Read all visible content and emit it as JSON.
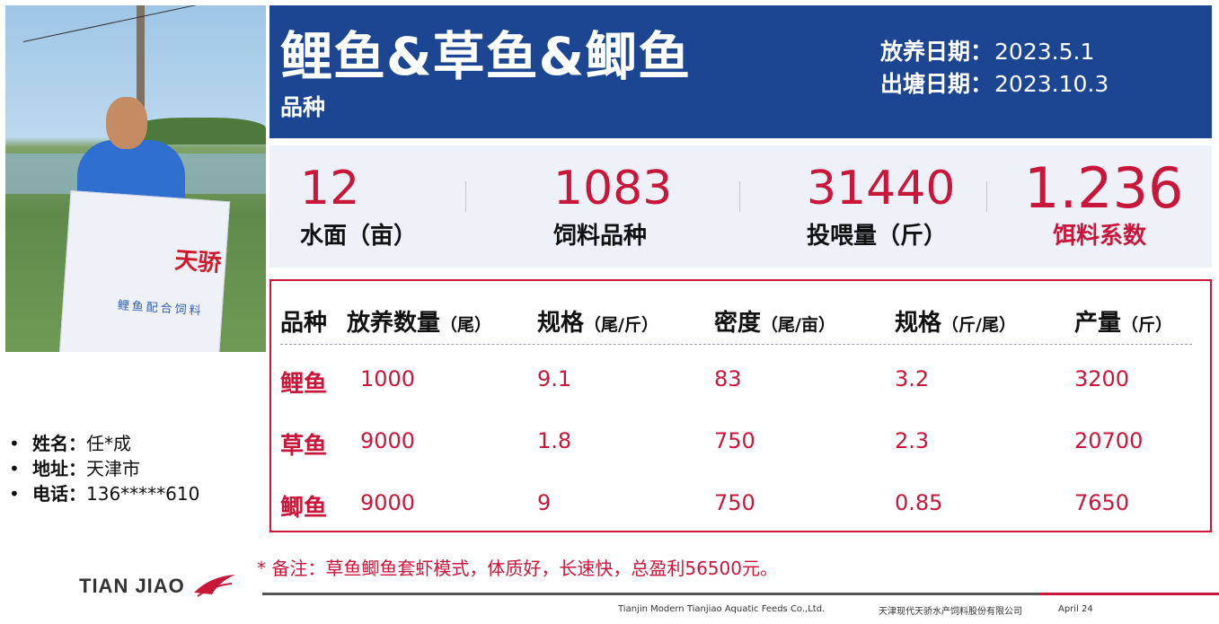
{
  "header": {
    "title": "鲤鱼&草鱼&鲫鱼",
    "subtitle": "品种",
    "stock_date_label": "放养日期：",
    "stock_date": "2023.5.1",
    "harvest_date_label": "出塘日期：",
    "harvest_date": "2023.10.3"
  },
  "photo": {
    "bag_brand": "天骄",
    "bag_sub": "鲤鱼配合饲料"
  },
  "stats": [
    {
      "value": "12",
      "label": "水面（亩）"
    },
    {
      "value": "1083",
      "label": "饲料品种"
    },
    {
      "value": "31440",
      "label": "投喂量（斤）"
    },
    {
      "value": "1.236",
      "label": "饵料系数"
    }
  ],
  "table": {
    "headers": [
      {
        "name": "品种",
        "unit": ""
      },
      {
        "name": "放养数量",
        "unit": "（尾）"
      },
      {
        "name": "规格",
        "unit": "（尾/斤）"
      },
      {
        "name": "密度",
        "unit": "（尾/亩）"
      },
      {
        "name": "规格",
        "unit": "（斤/尾）"
      },
      {
        "name": "产量",
        "unit": "（斤）"
      }
    ],
    "rows": [
      {
        "name": "鲤鱼",
        "qty": "1000",
        "spec1": "9.1",
        "density": "83",
        "spec2": "3.2",
        "output": "3200"
      },
      {
        "name": "草鱼",
        "qty": "9000",
        "spec1": "1.8",
        "density": "750",
        "spec2": "2.3",
        "output": "20700"
      },
      {
        "name": "鲫鱼",
        "qty": "9000",
        "spec1": "9",
        "density": "750",
        "spec2": "0.85",
        "output": "7650"
      }
    ]
  },
  "info": [
    {
      "key": "姓名：",
      "value": "任*成"
    },
    {
      "key": "地址：",
      "value": "天津市"
    },
    {
      "key": "电话：",
      "value": "136*****610"
    }
  ],
  "bullet": "•",
  "note": "* 备注：草鱼鲫鱼套虾模式，体质好，长速快，总盈利56500元。",
  "footer": {
    "logo": "TIAN JIAO",
    "company_en": "Tianjin Modern Tianjiao Aquatic Feeds Co.,Ltd.",
    "company_cn": "天津现代天骄水产饲料股份有限公司",
    "date": "April 24"
  },
  "colors": {
    "header_bg": "#1c4691",
    "accent": "#c8173a",
    "stats_bg": "#eef2f8"
  }
}
